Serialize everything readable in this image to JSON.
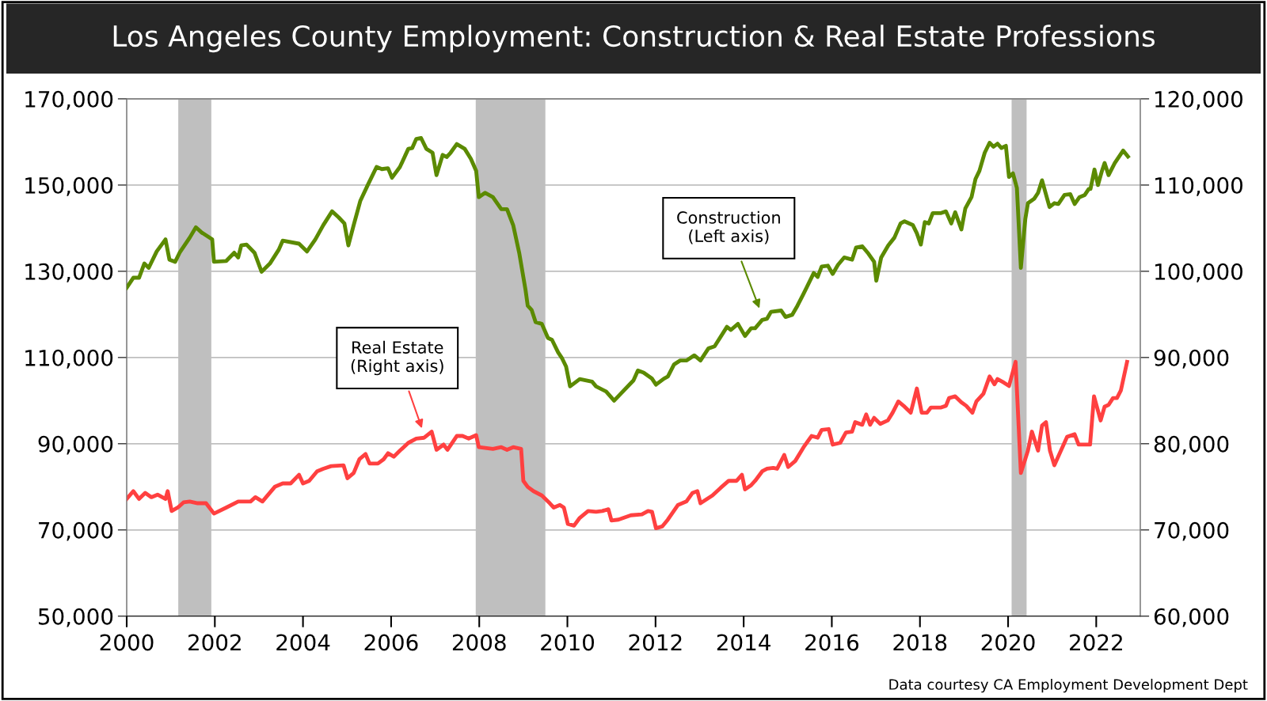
{
  "chart_data": {
    "type": "line",
    "title": "Los Angeles County Employment: Construction & Real Estate Professions",
    "xlim": [
      2000,
      2023
    ],
    "xticks": [
      2000,
      2002,
      2004,
      2006,
      2008,
      2010,
      2012,
      2014,
      2016,
      2018,
      2020,
      2022
    ],
    "ylim": [
      50000,
      170000
    ],
    "yticks": [
      {
        "value": 50000,
        "label": "50,000"
      },
      {
        "value": 70000,
        "label": "70,000"
      },
      {
        "value": 90000,
        "label": "90,000"
      },
      {
        "value": 110000,
        "label": "110,000"
      },
      {
        "value": 130000,
        "label": "130,000"
      },
      {
        "value": 150000,
        "label": "150,000"
      },
      {
        "value": 170000,
        "label": "170,000"
      }
    ],
    "y2lim": [
      60000,
      120000
    ],
    "y2ticks": [
      {
        "value": 60000,
        "label": "60,000"
      },
      {
        "value": 70000,
        "label": "70,000"
      },
      {
        "value": 80000,
        "label": "80,000"
      },
      {
        "value": 90000,
        "label": "90,000"
      },
      {
        "value": 100000,
        "label": "100,000"
      },
      {
        "value": 110000,
        "label": "110,000"
      },
      {
        "value": 120000,
        "label": "120,000"
      }
    ],
    "grid": true,
    "legend": false,
    "bands": [
      {
        "axis": "x",
        "from": 2001.17,
        "to": 2001.92,
        "color": "#bfbfbf"
      },
      {
        "axis": "x",
        "from": 2007.92,
        "to": 2009.5,
        "color": "#bfbfbf"
      },
      {
        "axis": "x",
        "from": 2020.08,
        "to": 2020.42,
        "color": "#bfbfbf"
      }
    ],
    "annotations": [
      "Construction\n(Left axis)",
      "Real Estate\n(Right axis)",
      "Data courtesy CA Employment Development Dept"
    ],
    "series": [
      {
        "color": "#5b8a00",
        "x": [
          2000.0,
          2000.15,
          2000.28,
          2000.4,
          2000.5,
          2000.68,
          2000.88,
          2000.97,
          2001.1,
          2001.2,
          2001.43,
          2001.57,
          2001.7,
          2001.94,
          2001.98,
          2002.26,
          2002.44,
          2002.53,
          2002.6,
          2002.72,
          2002.9,
          2003.06,
          2003.25,
          2003.45,
          2003.54,
          2003.91,
          2004.09,
          2004.28,
          2004.46,
          2004.66,
          2004.81,
          2004.94,
          2005.03,
          2005.15,
          2005.3,
          2005.47,
          2005.67,
          2005.79,
          2005.93,
          2006.02,
          2006.2,
          2006.39,
          2006.48,
          2006.57,
          2006.68,
          2006.8,
          2006.94,
          2007.03,
          2007.17,
          2007.26,
          2007.35,
          2007.49,
          2007.67,
          2007.81,
          2007.93,
          2007.99,
          2008.13,
          2008.31,
          2008.5,
          2008.63,
          2008.77,
          2008.91,
          2009.05,
          2009.1,
          2009.19,
          2009.28,
          2009.42,
          2009.56,
          2009.65,
          2009.79,
          2009.88,
          2009.97,
          2010.06,
          2010.28,
          2010.56,
          2010.65,
          2010.88,
          2011.06,
          2011.5,
          2011.6,
          2011.73,
          2011.92,
          2012.01,
          2012.19,
          2012.28,
          2012.42,
          2012.56,
          2012.7,
          2012.88,
          2013.02,
          2013.2,
          2013.34,
          2013.62,
          2013.71,
          2013.87,
          2014.03,
          2014.17,
          2014.26,
          2014.42,
          2014.53,
          2014.62,
          2014.85,
          2014.95,
          2015.1,
          2015.22,
          2015.36,
          2015.59,
          2015.68,
          2015.77,
          2015.91,
          2016.02,
          2016.14,
          2016.28,
          2016.46,
          2016.55,
          2016.69,
          2016.83,
          2016.96,
          2017.01,
          2017.12,
          2017.28,
          2017.42,
          2017.56,
          2017.65,
          2017.84,
          2017.93,
          2018.02,
          2018.11,
          2018.2,
          2018.29,
          2018.48,
          2018.59,
          2018.71,
          2018.8,
          2018.94,
          2019.03,
          2019.17,
          2019.26,
          2019.35,
          2019.47,
          2019.58,
          2019.67,
          2019.76,
          2019.85,
          2019.95,
          2020.02,
          2020.11,
          2020.2,
          2020.29,
          2020.39,
          2020.45,
          2020.59,
          2020.68,
          2020.77,
          2020.94,
          2021.05,
          2021.14,
          2021.28,
          2021.41,
          2021.51,
          2021.62,
          2021.74,
          2021.83,
          2021.87,
          2021.96,
          2022.04,
          2022.13,
          2022.19,
          2022.28,
          2022.42,
          2022.61,
          2022.72
        ],
        "values": [
          126200,
          128500,
          128500,
          131800,
          130800,
          134600,
          137400,
          132700,
          132200,
          134300,
          137800,
          140200,
          139000,
          137400,
          132200,
          132400,
          134300,
          133200,
          136000,
          136200,
          134300,
          129900,
          131800,
          135000,
          137100,
          136400,
          134600,
          137400,
          140700,
          143900,
          142500,
          141100,
          136000,
          140700,
          146300,
          150000,
          154200,
          153700,
          153900,
          151700,
          154200,
          158400,
          158600,
          160700,
          160900,
          158400,
          157500,
          152300,
          157000,
          156500,
          157500,
          159500,
          158400,
          156100,
          153300,
          147200,
          148200,
          147200,
          144400,
          144400,
          140700,
          134100,
          125700,
          122000,
          121000,
          118200,
          117800,
          114500,
          114100,
          111200,
          109800,
          107900,
          103300,
          105000,
          104400,
          103300,
          102100,
          100000,
          104700,
          107000,
          106500,
          105100,
          103700,
          105100,
          105600,
          108400,
          109300,
          109300,
          110500,
          109300,
          112100,
          112600,
          117100,
          116400,
          117800,
          115000,
          116800,
          116800,
          118700,
          119000,
          120600,
          120900,
          119400,
          119900,
          122000,
          124800,
          129600,
          128700,
          131100,
          131300,
          129400,
          131500,
          133200,
          132700,
          135500,
          135800,
          134100,
          132200,
          127800,
          133200,
          136000,
          137800,
          141100,
          141600,
          140700,
          138800,
          136200,
          141400,
          141100,
          143500,
          143500,
          143900,
          141100,
          143700,
          139700,
          144600,
          147200,
          151400,
          153300,
          157500,
          159800,
          158900,
          159600,
          158600,
          159100,
          151900,
          152700,
          149300,
          130800,
          142100,
          145800,
          146800,
          148200,
          151100,
          144900,
          145800,
          145600,
          147700,
          147900,
          145600,
          147200,
          147700,
          149100,
          149100,
          153600,
          150000,
          153300,
          155100,
          152300,
          155100,
          158000,
          156600
        ]
      },
      {
        "color": "#ff4040",
        "axis": "y2",
        "x": [
          2000.0,
          2000.15,
          2000.28,
          2000.42,
          2000.56,
          2000.7,
          2000.88,
          2000.93,
          2001.02,
          2001.16,
          2001.29,
          2001.43,
          2001.61,
          2001.8,
          2001.98,
          2002.26,
          2002.53,
          2002.81,
          2002.92,
          2003.08,
          2003.36,
          2003.54,
          2003.72,
          2003.91,
          2004.0,
          2004.14,
          2004.32,
          2004.46,
          2004.64,
          2004.92,
          2005.01,
          2005.15,
          2005.28,
          2005.42,
          2005.51,
          2005.7,
          2005.83,
          2005.93,
          2006.06,
          2006.2,
          2006.39,
          2006.57,
          2006.75,
          2006.92,
          2007.03,
          2007.19,
          2007.28,
          2007.49,
          2007.62,
          2007.76,
          2007.93,
          2007.99,
          2008.31,
          2008.5,
          2008.63,
          2008.77,
          2008.95,
          2009.0,
          2009.1,
          2009.23,
          2009.42,
          2009.6,
          2009.69,
          2009.83,
          2009.92,
          2010.01,
          2010.15,
          2010.28,
          2010.47,
          2010.65,
          2010.79,
          2010.93,
          2011.0,
          2011.16,
          2011.44,
          2011.69,
          2011.83,
          2011.92,
          2012.01,
          2012.15,
          2012.28,
          2012.51,
          2012.7,
          2012.84,
          2012.95,
          2013.02,
          2013.29,
          2013.48,
          2013.66,
          2013.84,
          2013.96,
          2014.03,
          2014.17,
          2014.26,
          2014.42,
          2014.53,
          2014.67,
          2014.76,
          2014.92,
          2015.01,
          2015.17,
          2015.36,
          2015.54,
          2015.68,
          2015.77,
          2015.93,
          2016.02,
          2016.19,
          2016.32,
          2016.46,
          2016.53,
          2016.69,
          2016.78,
          2016.87,
          2016.96,
          2017.1,
          2017.27,
          2017.38,
          2017.51,
          2017.65,
          2017.79,
          2017.93,
          2018.04,
          2018.16,
          2018.25,
          2018.48,
          2018.59,
          2018.66,
          2018.8,
          2018.94,
          2019.05,
          2019.19,
          2019.28,
          2019.44,
          2019.58,
          2019.69,
          2019.76,
          2019.9,
          2020.02,
          2020.17,
          2020.29,
          2020.45,
          2020.54,
          2020.68,
          2020.77,
          2020.86,
          2020.95,
          2021.05,
          2021.34,
          2021.51,
          2021.6,
          2021.86,
          2021.95,
          2022.1,
          2022.19,
          2022.28,
          2022.38,
          2022.47,
          2022.56,
          2022.7
        ],
        "values": [
          73600,
          74500,
          73600,
          74300,
          73800,
          74100,
          73600,
          74500,
          72200,
          72600,
          73200,
          73300,
          73100,
          73100,
          71900,
          72600,
          73300,
          73300,
          73800,
          73300,
          75000,
          75400,
          75400,
          76400,
          75400,
          75700,
          76800,
          77100,
          77400,
          77500,
          76000,
          76600,
          78200,
          78800,
          77700,
          77700,
          78200,
          78900,
          78500,
          79200,
          80100,
          80600,
          80700,
          81400,
          79300,
          79900,
          79300,
          80900,
          80900,
          80600,
          81000,
          79600,
          79400,
          79600,
          79300,
          79600,
          79400,
          75700,
          75000,
          74500,
          74000,
          73100,
          72600,
          72900,
          72600,
          70700,
          70500,
          71400,
          72200,
          72100,
          72200,
          72400,
          71100,
          71200,
          71700,
          71800,
          72200,
          72100,
          70200,
          70400,
          71200,
          72900,
          73300,
          74300,
          74500,
          73100,
          74000,
          74900,
          75700,
          75700,
          76400,
          74700,
          75200,
          75700,
          76800,
          77100,
          77200,
          77100,
          78700,
          77300,
          78000,
          79600,
          80900,
          80700,
          81600,
          81700,
          79900,
          80100,
          81300,
          81400,
          82500,
          82200,
          83400,
          82200,
          83000,
          82300,
          82700,
          83600,
          84900,
          84300,
          83600,
          86400,
          83600,
          83600,
          84200,
          84200,
          84400,
          85300,
          85500,
          84800,
          84400,
          83600,
          84900,
          85800,
          87800,
          86900,
          87500,
          87100,
          86700,
          89500,
          76600,
          79200,
          81400,
          79200,
          82100,
          82500,
          79200,
          77500,
          80800,
          81100,
          79900,
          79900,
          85500,
          82700,
          84300,
          84500,
          85300,
          85300,
          86200,
          89500
        ]
      }
    ]
  }
}
